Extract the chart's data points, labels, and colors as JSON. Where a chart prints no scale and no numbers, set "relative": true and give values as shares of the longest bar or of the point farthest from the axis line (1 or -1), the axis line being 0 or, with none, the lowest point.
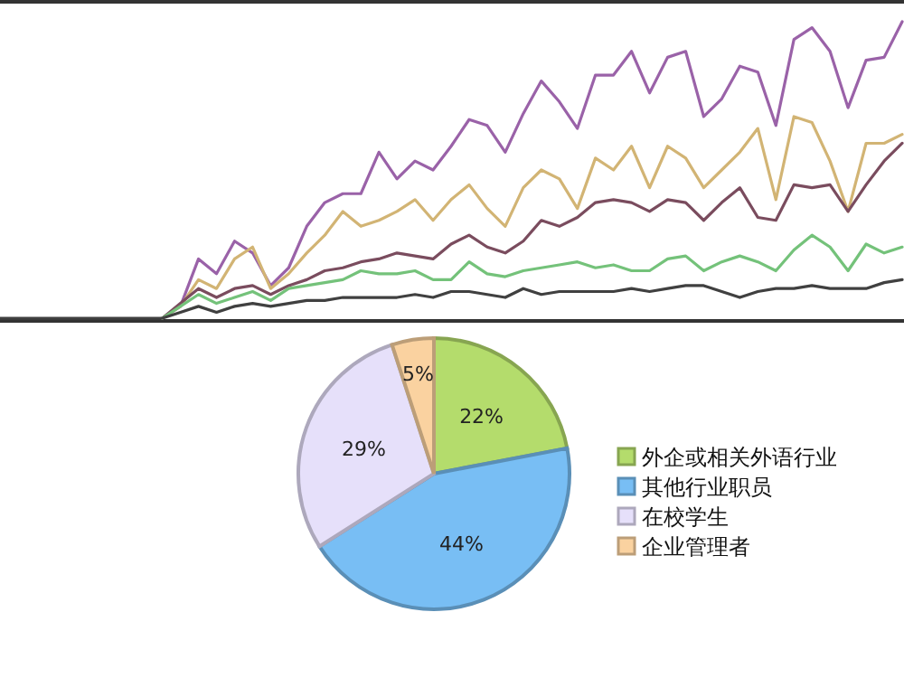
{
  "chart_data": [
    {
      "type": "line",
      "relative": true,
      "categories": [
        null,
        null,
        null,
        null,
        null,
        null,
        null,
        null,
        null,
        null,
        null,
        null,
        null,
        null,
        null,
        null,
        null,
        null,
        null,
        null,
        null,
        null,
        null,
        null,
        null,
        null,
        null,
        null,
        null,
        null,
        null,
        null,
        null,
        null,
        null,
        null,
        null,
        null,
        null,
        null,
        null,
        null,
        null,
        null,
        null,
        null,
        null,
        null,
        null,
        null,
        null
      ],
      "series": [
        {
          "color": "#9a62a8",
          "values": [
            null,
            null,
            null,
            null,
            null,
            null,
            null,
            null,
            null,
            0,
            0.04,
            0.2,
            0.15,
            0.26,
            0.22,
            0.11,
            0.17,
            0.31,
            0.39,
            0.42,
            0.42,
            0.56,
            0.47,
            0.53,
            0.5,
            0.58,
            0.67,
            0.65,
            0.56,
            0.69,
            0.8,
            0.73,
            0.64,
            0.82,
            0.82,
            0.9,
            0.76,
            0.88,
            0.9,
            0.68,
            0.74,
            0.85,
            0.83,
            0.65,
            0.94,
            0.98,
            0.9,
            0.71,
            0.87,
            0.88,
            1
          ]
        },
        {
          "color": "#d2b474",
          "values": [
            null,
            null,
            null,
            null,
            null,
            null,
            null,
            null,
            null,
            0,
            0.04,
            0.13,
            0.1,
            0.2,
            0.24,
            0.1,
            0.15,
            0.22,
            0.28,
            0.36,
            0.31,
            0.33,
            0.36,
            0.4,
            0.33,
            0.4,
            0.45,
            0.37,
            0.31,
            0.44,
            0.5,
            0.47,
            0.37,
            0.54,
            0.5,
            0.58,
            0.44,
            0.58,
            0.54,
            0.44,
            0.5,
            0.56,
            0.64,
            0.4,
            0.68,
            0.66,
            0.53,
            0.36,
            0.59,
            0.59,
            0.62
          ]
        },
        {
          "color": "#7a4c5e",
          "values": [
            null,
            null,
            null,
            null,
            null,
            null,
            null,
            null,
            null,
            0,
            0.05,
            0.1,
            0.07,
            0.1,
            0.11,
            0.08,
            0.11,
            0.13,
            0.16,
            0.17,
            0.19,
            0.2,
            0.22,
            0.21,
            0.2,
            0.25,
            0.28,
            0.24,
            0.22,
            0.26,
            0.33,
            0.31,
            0.34,
            0.39,
            0.4,
            0.39,
            0.36,
            0.4,
            0.39,
            0.33,
            0.39,
            0.44,
            0.34,
            0.33,
            0.45,
            0.44,
            0.45,
            0.36,
            0.45,
            0.53,
            0.59
          ]
        },
        {
          "color": "#74c27a",
          "values": [
            null,
            null,
            null,
            null,
            null,
            null,
            null,
            null,
            null,
            0,
            0.04,
            0.08,
            0.05,
            0.07,
            0.09,
            0.06,
            0.1,
            0.11,
            0.12,
            0.13,
            0.16,
            0.15,
            0.15,
            0.16,
            0.13,
            0.13,
            0.19,
            0.15,
            0.14,
            0.16,
            0.17,
            0.18,
            0.19,
            0.17,
            0.18,
            0.16,
            0.16,
            0.2,
            0.21,
            0.16,
            0.19,
            0.21,
            0.19,
            0.16,
            0.23,
            0.28,
            0.24,
            0.16,
            0.25,
            0.22,
            0.24
          ]
        },
        {
          "color": "#404040",
          "values": [
            0,
            0,
            0,
            0,
            0,
            0,
            0,
            0,
            0,
            0,
            0.02,
            0.04,
            0.02,
            0.04,
            0.05,
            0.04,
            0.05,
            0.06,
            0.06,
            0.07,
            0.07,
            0.07,
            0.07,
            0.08,
            0.07,
            0.09,
            0.09,
            0.08,
            0.07,
            0.1,
            0.08,
            0.09,
            0.09,
            0.09,
            0.09,
            0.1,
            0.09,
            0.1,
            0.11,
            0.11,
            0.09,
            0.07,
            0.09,
            0.1,
            0.1,
            0.11,
            0.1,
            0.1,
            0.1,
            0.12,
            0.13
          ]
        }
      ]
    },
    {
      "type": "pie",
      "categories": [
        "外企或相关外语行业",
        "其他行业职员",
        "在校学生",
        "企业管理者"
      ],
      "values": [
        22,
        44,
        29,
        5
      ],
      "value_labels": [
        "22%",
        "44%",
        "29%",
        "5%"
      ],
      "colors": [
        "#b4dc6c",
        "#78bef4",
        "#e6e0fa",
        "#fad2a0"
      ],
      "legend": "right"
    }
  ]
}
